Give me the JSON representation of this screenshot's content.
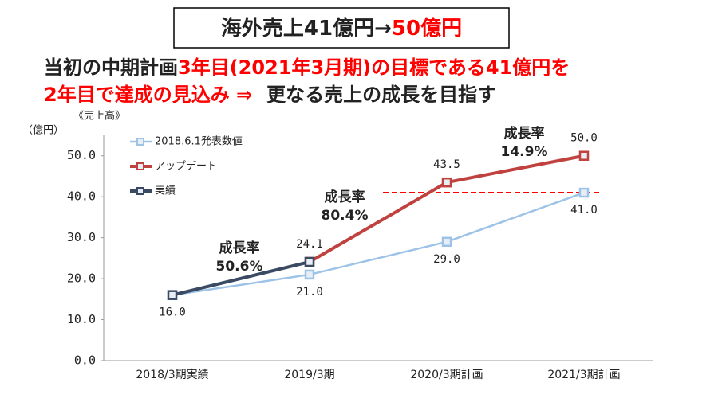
{
  "headline": [
    "海外売上41億円→",
    "50億円"
  ],
  "subtitle": [
    [
      "当初の中期計画",
      "3年目(2021年3月期)の目標である41億円を"
    ],
    [
      "2年目で達成の見込み ⇒",
      "更なる売上の成長を目指す"
    ]
  ],
  "chart_data": {
    "type": "line",
    "caption": "《売上高》",
    "y_unit": "（億円）",
    "categories": [
      "2018/3期実績",
      "2019/3期",
      "2020/3期計画",
      "2021/3期計画"
    ],
    "series": [
      {
        "name": "2018.6.1発表数値",
        "color": "#9dc3e6",
        "values": [
          16,
          21,
          29,
          41
        ],
        "value_labels": [
          "16.0",
          "21.0",
          "29.0",
          "41.0"
        ]
      },
      {
        "name": "アップデート",
        "color": "#c0423f",
        "values": [
          null,
          24.1,
          43.5,
          50
        ],
        "value_labels": [
          null,
          "24.1",
          "43.5",
          "50.0"
        ]
      },
      {
        "name": "実績",
        "color": "#3b4a63",
        "values": [
          16,
          24.1,
          null,
          null
        ]
      }
    ],
    "ylim": [
      0,
      55
    ],
    "yticks": [
      {
        "value": 0,
        "label": "0.0"
      },
      {
        "value": 10,
        "label": "10.0"
      },
      {
        "value": 20,
        "label": "20.0"
      },
      {
        "value": 30,
        "label": "30.0"
      },
      {
        "value": 40,
        "label": "40.0"
      },
      {
        "value": 50,
        "label": "50.0"
      }
    ],
    "reference_line": 41,
    "annotations": [
      {
        "title": "成長率",
        "rate": "50.6%",
        "color": "#3b4a63"
      },
      {
        "title": "成長率",
        "rate": "80.4%",
        "color": "#c0423f"
      },
      {
        "title": "成長率",
        "rate": "14.9%",
        "color": "#c0423f"
      }
    ]
  }
}
